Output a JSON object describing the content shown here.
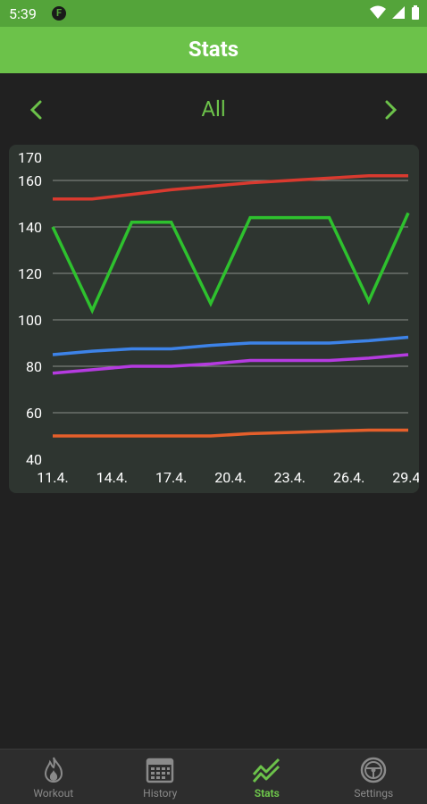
{
  "status_bar": {
    "time": "5:39",
    "app_badge": "F"
  },
  "app_bar": {
    "title": "Stats"
  },
  "selector": {
    "label": "All"
  },
  "nav": [
    {
      "label": "Workout",
      "icon": "flame-icon"
    },
    {
      "label": "History",
      "icon": "calendar-icon"
    },
    {
      "label": "Stats",
      "icon": "trend-icon",
      "active": true
    },
    {
      "label": "Settings",
      "icon": "steering-wheel-icon"
    }
  ],
  "colors": {
    "accent": "#6cc24a",
    "status_bar": "#54a43a",
    "background": "#212121",
    "chart_bg": "#2e3530"
  },
  "chart_data": {
    "type": "line",
    "categories": [
      "11.4.",
      "14.4.",
      "17.4.",
      "20.4.",
      "23.4.",
      "26.4.",
      "29.4."
    ],
    "x": [
      11,
      13,
      15,
      17,
      19,
      21,
      23,
      25,
      27,
      29
    ],
    "ylim": [
      40,
      170
    ],
    "yticks": [
      40,
      60,
      80,
      100,
      120,
      140,
      160,
      170
    ],
    "grid": true,
    "series": [
      {
        "color": "#d93a2f",
        "values": [
          152,
          152,
          154,
          156,
          157.5,
          159,
          160,
          161,
          162,
          162
        ]
      },
      {
        "color": "#2ec12e",
        "values": [
          140,
          104,
          142,
          142,
          107,
          144,
          144,
          144,
          108,
          146
        ]
      },
      {
        "color": "#3d83e8",
        "values": [
          85,
          86.5,
          87.5,
          87.5,
          89,
          90,
          90,
          90,
          91,
          92.5
        ]
      },
      {
        "color": "#b53be0",
        "values": [
          77,
          78.5,
          80,
          80,
          81,
          82.5,
          82.5,
          82.5,
          83.5,
          85
        ]
      },
      {
        "color": "#e55f2b",
        "values": [
          50,
          50,
          50,
          50,
          50,
          51,
          51.5,
          52,
          52.5,
          52.5
        ]
      }
    ]
  }
}
